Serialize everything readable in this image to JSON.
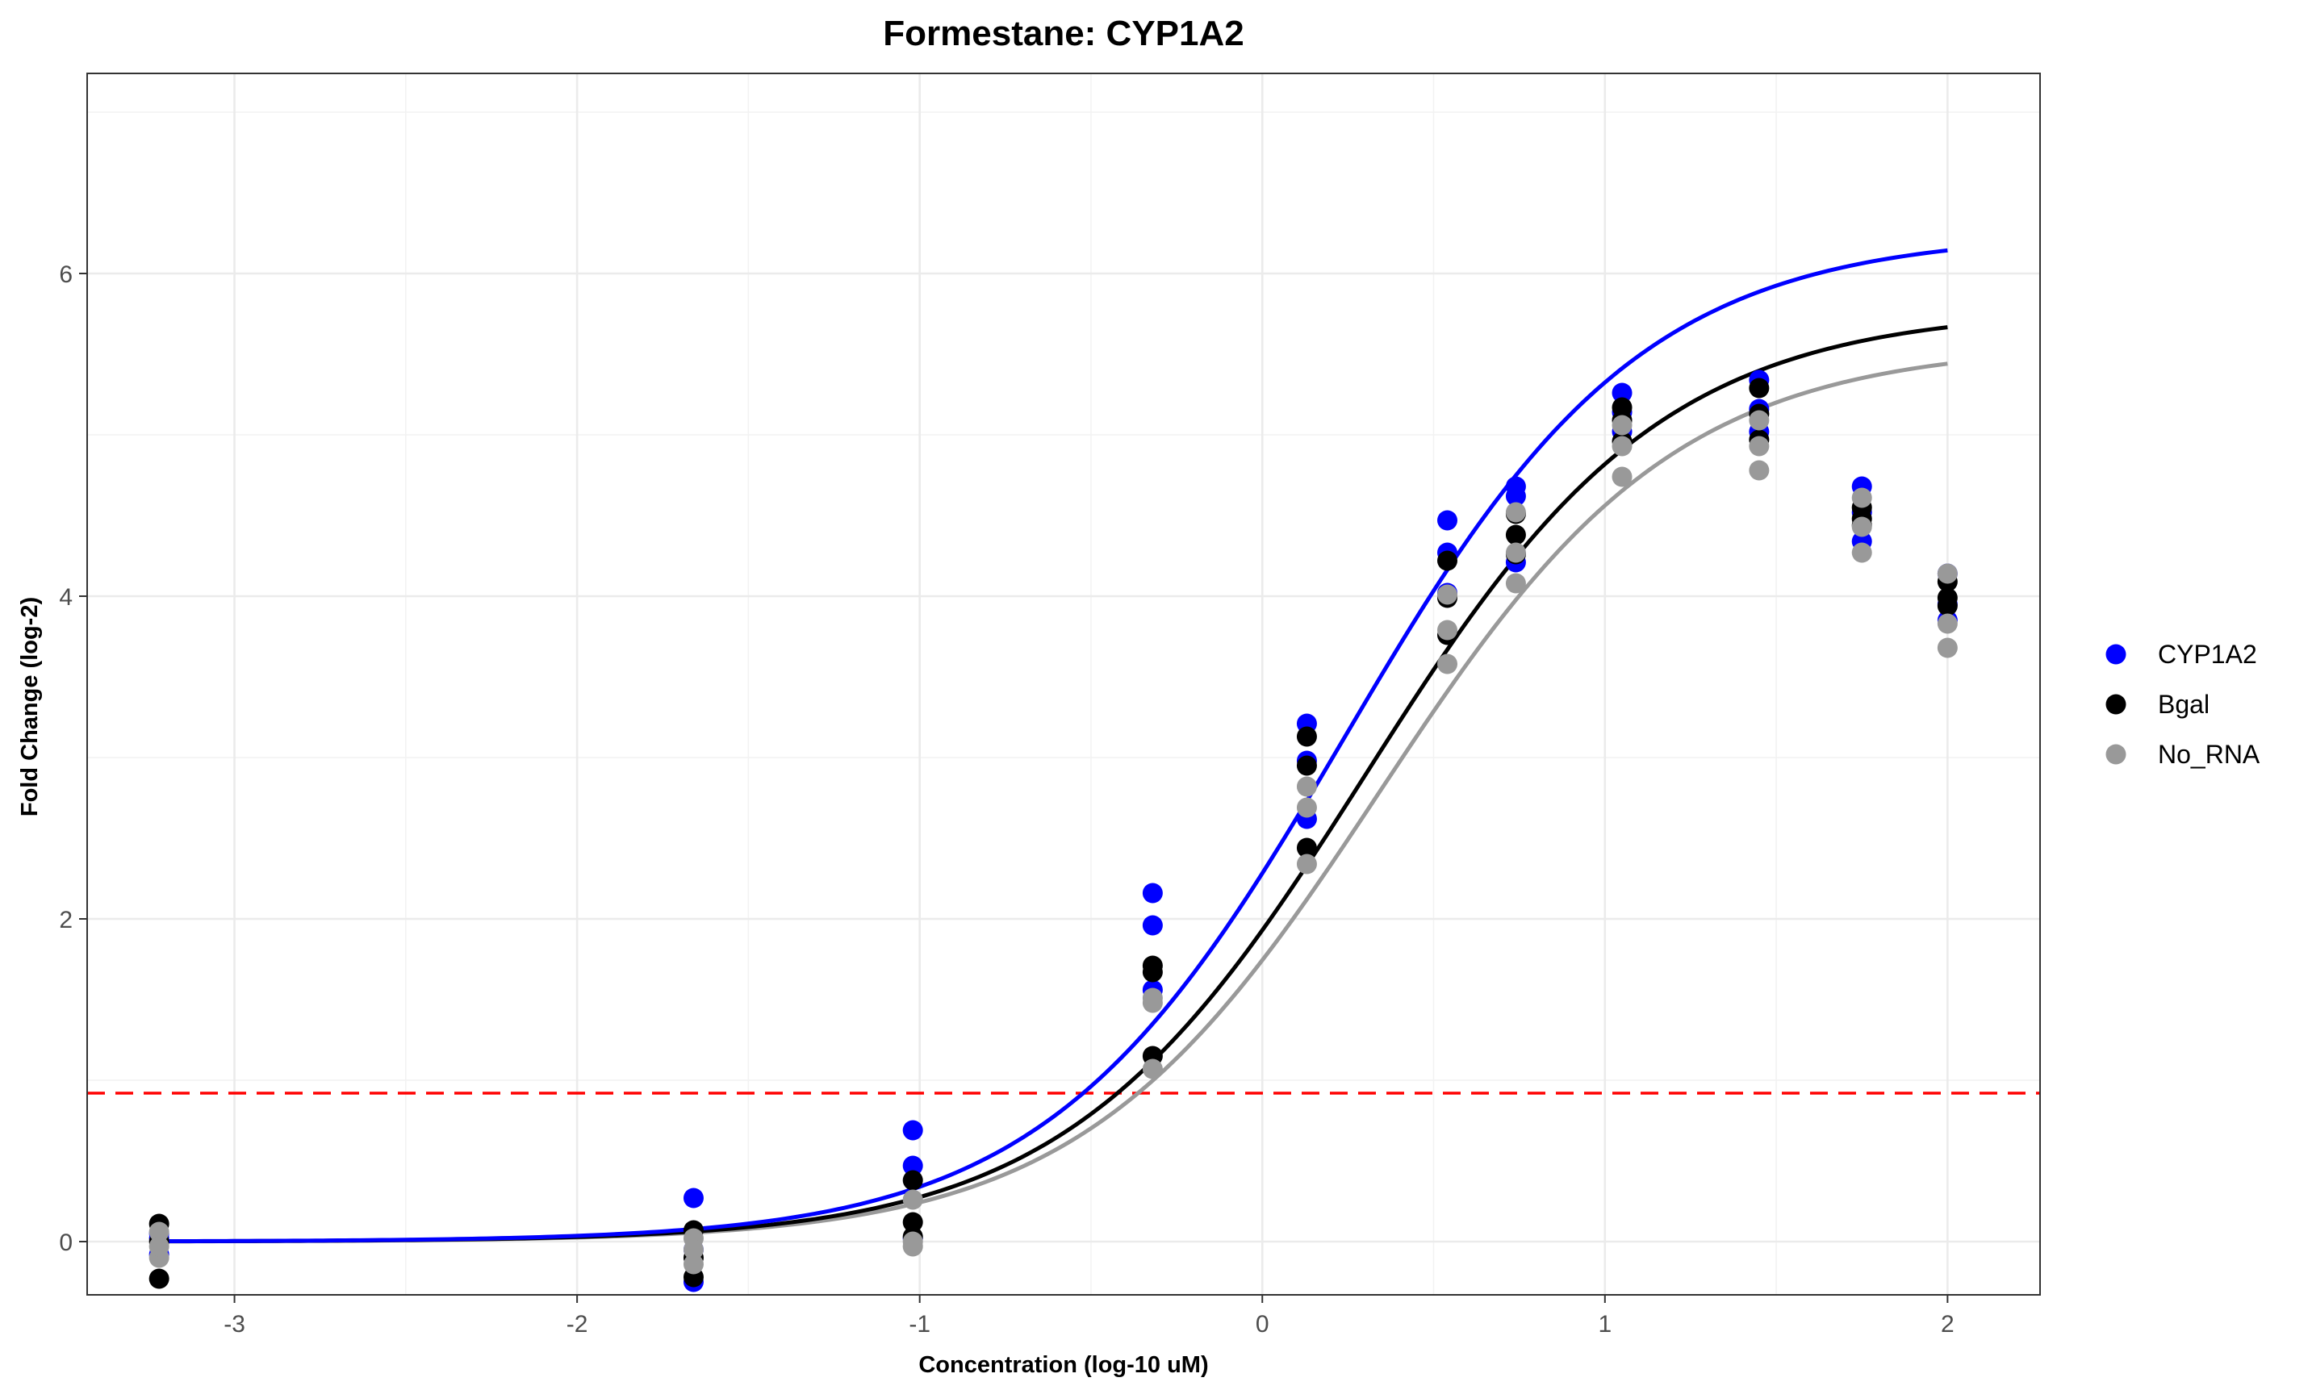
{
  "chart_data": {
    "type": "scatter",
    "title": "Formestane: CYP1A2",
    "xlabel": "Concentration (log-10 uM)",
    "ylabel": "Fold Change (log-2)",
    "xlim": [
      -3.43,
      2.27
    ],
    "ylim": [
      -0.33,
      7.24
    ],
    "x_ticks": [
      -3,
      -2,
      -1,
      0,
      1,
      2
    ],
    "y_ticks": [
      0,
      2,
      4,
      6
    ],
    "x_tick_labels": [
      "-3",
      "-2",
      "-1",
      "0",
      "1",
      "2"
    ],
    "y_tick_labels": [
      "0",
      "2",
      "4",
      "6"
    ],
    "grid": true,
    "legend_position": "right",
    "threshold": {
      "y": 0.92,
      "color": "#ff0000",
      "style": "dashed"
    },
    "series": [
      {
        "name": "CYP1A2",
        "color": "#0000ff",
        "points": [
          [
            -3.22,
            0.02
          ],
          [
            -3.22,
            -0.08
          ],
          [
            -3.22,
            0.05
          ],
          [
            -1.66,
            0.27
          ],
          [
            -1.66,
            -0.25
          ],
          [
            -1.66,
            -0.05
          ],
          [
            -1.02,
            0.69
          ],
          [
            -1.02,
            0.47
          ],
          [
            -1.02,
            0.02
          ],
          [
            -0.32,
            2.16
          ],
          [
            -0.32,
            1.96
          ],
          [
            -0.32,
            1.56
          ],
          [
            0.13,
            3.21
          ],
          [
            0.13,
            2.98
          ],
          [
            0.13,
            2.62
          ],
          [
            0.54,
            4.47
          ],
          [
            0.54,
            4.27
          ],
          [
            0.54,
            4.02
          ],
          [
            0.74,
            4.68
          ],
          [
            0.74,
            4.62
          ],
          [
            0.74,
            4.21
          ],
          [
            1.05,
            5.26
          ],
          [
            1.05,
            5.14
          ],
          [
            1.05,
            5.02
          ],
          [
            1.45,
            5.34
          ],
          [
            1.45,
            5.16
          ],
          [
            1.45,
            5.02
          ],
          [
            1.75,
            4.68
          ],
          [
            1.75,
            4.52
          ],
          [
            1.75,
            4.34
          ],
          [
            2.0,
            4.14
          ],
          [
            2.0,
            3.95
          ],
          [
            2.0,
            3.85
          ]
        ],
        "fit": {
          "bottom": 0.0,
          "top": 6.25,
          "logEC50": 0.24,
          "hill": 1.0
        }
      },
      {
        "name": "Bgal",
        "color": "#000000",
        "points": [
          [
            -3.22,
            0.11
          ],
          [
            -3.22,
            -0.23
          ],
          [
            -3.22,
            0.0
          ],
          [
            -1.66,
            0.07
          ],
          [
            -1.66,
            -0.22
          ],
          [
            -1.66,
            -0.1
          ],
          [
            -1.02,
            0.38
          ],
          [
            -1.02,
            0.12
          ],
          [
            -1.02,
            0.03
          ],
          [
            -0.32,
            1.71
          ],
          [
            -0.32,
            1.67
          ],
          [
            -0.32,
            1.15
          ],
          [
            0.13,
            3.13
          ],
          [
            0.13,
            2.95
          ],
          [
            0.13,
            2.44
          ],
          [
            0.54,
            4.22
          ],
          [
            0.54,
            3.99
          ],
          [
            0.54,
            3.76
          ],
          [
            0.74,
            4.51
          ],
          [
            0.74,
            4.38
          ],
          [
            0.74,
            4.26
          ],
          [
            1.05,
            5.17
          ],
          [
            1.05,
            5.09
          ],
          [
            1.05,
            4.96
          ],
          [
            1.45,
            5.29
          ],
          [
            1.45,
            5.13
          ],
          [
            1.45,
            4.97
          ],
          [
            1.75,
            4.55
          ],
          [
            1.75,
            4.48
          ],
          [
            1.75,
            4.44
          ],
          [
            2.0,
            4.09
          ],
          [
            2.0,
            3.99
          ],
          [
            2.0,
            3.94
          ]
        ],
        "fit": {
          "bottom": 0.0,
          "top": 5.78,
          "logEC50": 0.3,
          "hill": 1.0
        }
      },
      {
        "name": "No_RNA",
        "color": "#999999",
        "points": [
          [
            -3.22,
            0.06
          ],
          [
            -3.22,
            -0.1
          ],
          [
            -3.22,
            -0.03
          ],
          [
            -1.66,
            0.02
          ],
          [
            -1.66,
            -0.14
          ],
          [
            -1.66,
            -0.05
          ],
          [
            -1.02,
            0.26
          ],
          [
            -1.02,
            0.0
          ],
          [
            -1.02,
            -0.03
          ],
          [
            -0.32,
            1.51
          ],
          [
            -0.32,
            1.48
          ],
          [
            -0.32,
            1.07
          ],
          [
            0.13,
            2.82
          ],
          [
            0.13,
            2.69
          ],
          [
            0.13,
            2.34
          ],
          [
            0.54,
            4.01
          ],
          [
            0.54,
            3.79
          ],
          [
            0.54,
            3.58
          ],
          [
            0.74,
            4.52
          ],
          [
            0.74,
            4.27
          ],
          [
            0.74,
            4.08
          ],
          [
            1.05,
            5.06
          ],
          [
            1.05,
            4.93
          ],
          [
            1.05,
            4.74
          ],
          [
            1.45,
            5.09
          ],
          [
            1.45,
            4.93
          ],
          [
            1.45,
            4.78
          ],
          [
            1.75,
            4.61
          ],
          [
            1.75,
            4.43
          ],
          [
            1.75,
            4.27
          ],
          [
            2.0,
            4.14
          ],
          [
            2.0,
            3.83
          ],
          [
            2.0,
            3.68
          ]
        ],
        "fit": {
          "bottom": 0.0,
          "top": 5.56,
          "logEC50": 0.34,
          "hill": 1.0
        }
      }
    ]
  }
}
